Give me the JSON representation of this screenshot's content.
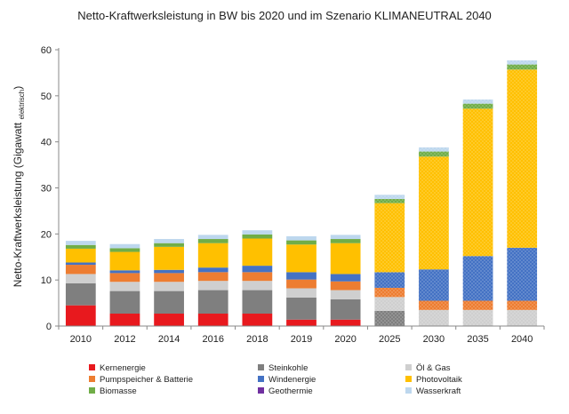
{
  "title": "Netto-Kraftwerksleistung in BW bis 2020 und im Szenario KLIMANEUTRAL 2040",
  "chart_data": {
    "type": "bar",
    "stacked": true,
    "title": "Netto-Kraftwerksleistung in BW bis 2020 und im Szenario KLIMANEUTRAL 2040",
    "ylabel": "Netto-Kraftwerksleistung (Gigawatt",
    "ylabel_sub": "elektrisch",
    "ylabel_close": ")",
    "xlabel": "",
    "ylim": [
      0,
      60
    ],
    "yticks": [
      0,
      10,
      20,
      30,
      40,
      50,
      60
    ],
    "grid": false,
    "legend_position": "bottom",
    "hatched_categories": [
      "2025",
      "2030",
      "2035",
      "2040"
    ],
    "categories": [
      "2010",
      "2012",
      "2014",
      "2016",
      "2018",
      "2019",
      "2020",
      "2025",
      "2030",
      "2035",
      "2040"
    ],
    "series": [
      {
        "name": "Kernenergie",
        "color": "#e8191e",
        "values": [
          4.5,
          2.7,
          2.7,
          2.7,
          2.7,
          1.4,
          1.4,
          0,
          0,
          0,
          0
        ]
      },
      {
        "name": "Steinkohle",
        "color": "#7f7f7f",
        "values": [
          4.8,
          4.9,
          4.9,
          5.1,
          5.1,
          4.8,
          4.4,
          3.3,
          0,
          0,
          0
        ]
      },
      {
        "name": "Öl & Gas",
        "color": "#cfcfcf",
        "values": [
          2.0,
          2.0,
          2.0,
          2.0,
          2.0,
          2.0,
          2.0,
          3.0,
          3.5,
          3.5,
          3.5
        ]
      },
      {
        "name": "Pumpspeicher & Batterie",
        "color": "#ed7d31",
        "values": [
          2.0,
          1.9,
          1.9,
          1.9,
          1.9,
          1.9,
          1.9,
          2.0,
          2.0,
          2.0,
          2.0
        ]
      },
      {
        "name": "Windenergie",
        "color": "#4472c4",
        "values": [
          0.5,
          0.6,
          0.7,
          1.0,
          1.4,
          1.6,
          1.6,
          3.4,
          6.8,
          9.7,
          11.5
        ]
      },
      {
        "name": "Photovoltaik",
        "color": "#ffc000",
        "values": [
          3.0,
          4.0,
          5.0,
          5.3,
          5.9,
          6.0,
          6.7,
          15.0,
          24.5,
          32.0,
          38.7
        ]
      },
      {
        "name": "Biomasse",
        "color": "#70ad47",
        "values": [
          0.8,
          0.8,
          0.8,
          0.9,
          0.9,
          0.9,
          0.9,
          0.9,
          1.1,
          1.1,
          1.1
        ]
      },
      {
        "name": "Geothermie",
        "color": "#7030a0",
        "values": [
          0,
          0,
          0,
          0,
          0,
          0,
          0,
          0,
          0,
          0,
          0
        ]
      },
      {
        "name": "Wasserkraft",
        "color": "#bdd7ee",
        "values": [
          0.9,
          0.9,
          0.9,
          0.9,
          0.9,
          0.9,
          0.9,
          0.9,
          0.9,
          0.9,
          0.9
        ]
      }
    ]
  }
}
